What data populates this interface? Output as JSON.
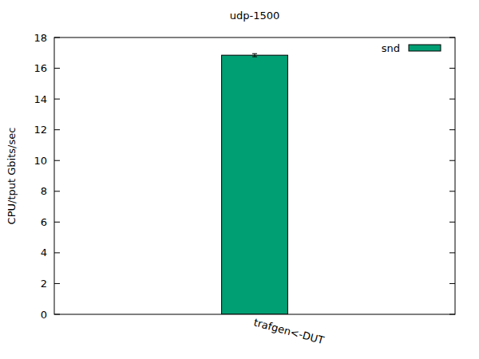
{
  "chart_data": {
    "type": "bar",
    "title": "udp-1500",
    "y_label": "CPU/tput Gbits/sec",
    "categories": [
      "trafgen<-DUT"
    ],
    "series": [
      {
        "name": "snd",
        "color": "#009e73",
        "values": [
          16.85
        ],
        "errors": [
          0.1
        ]
      }
    ],
    "ylim": [
      0,
      18
    ],
    "yticks": [
      0,
      2,
      4,
      6,
      8,
      10,
      12,
      14,
      16,
      18
    ],
    "grid": false,
    "legend": "top-right"
  }
}
